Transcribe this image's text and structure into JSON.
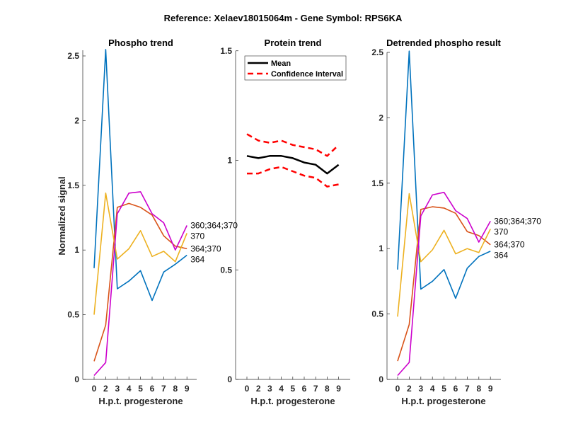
{
  "figure_title": "Reference:  Xelaev18015064m - Gene Symbol:  RPS6KA",
  "colors": {
    "s364": "#0072BD",
    "s364_370": "#D95319",
    "s370": "#EDB120",
    "s360_364_370": "#CC00CC",
    "mean": "#000000",
    "ci": "#FF0000"
  },
  "chart_data": [
    {
      "type": "line",
      "title": "Phospho trend",
      "xlabel": "H.p.t. progesterone",
      "ylabel": "Normalized signal",
      "categories": [
        "0",
        "2",
        "3",
        "4",
        "5",
        "6",
        "7",
        "8",
        "9"
      ],
      "yticks": [
        "0",
        "0.5",
        "1",
        "1.5",
        "2",
        "2.5"
      ],
      "ylim": [
        0,
        2.55
      ],
      "grid": false,
      "series": [
        {
          "name": "364",
          "color": "#0072BD",
          "values": [
            0.86,
            2.55,
            0.7,
            0.76,
            0.84,
            0.61,
            0.83,
            0.89,
            0.96
          ]
        },
        {
          "name": "364;370",
          "color": "#D95319",
          "values": [
            0.14,
            0.42,
            1.33,
            1.36,
            1.33,
            1.27,
            1.11,
            1.03,
            1.01
          ]
        },
        {
          "name": "370",
          "color": "#EDB120",
          "values": [
            0.5,
            1.44,
            0.93,
            1.01,
            1.15,
            0.95,
            0.99,
            0.91,
            1.13
          ]
        },
        {
          "name": "360;364;370",
          "color": "#CC00CC",
          "values": [
            0.03,
            0.13,
            1.28,
            1.44,
            1.45,
            1.28,
            1.21,
            1.0,
            1.19
          ]
        }
      ]
    },
    {
      "type": "line",
      "title": "Protein trend",
      "xlabel": "H.p.t. progesterone",
      "categories": [
        "0",
        "2",
        "3",
        "4",
        "5",
        "6",
        "7",
        "8",
        "9"
      ],
      "yticks": [
        "0",
        "0.5",
        "1",
        "1.5"
      ],
      "ylim": [
        0,
        1.5
      ],
      "grid": false,
      "legend": {
        "placement": "top-left",
        "entries": [
          "Mean",
          "Confidence Interval"
        ]
      },
      "series": [
        {
          "name": "Mean",
          "color": "#000000",
          "style": "solid",
          "values": [
            1.02,
            1.01,
            1.02,
            1.02,
            1.01,
            0.99,
            0.98,
            0.94,
            0.98
          ]
        },
        {
          "name": "Confidence Interval",
          "color": "#FF0000",
          "style": "dashed",
          "values": [
            1.12,
            1.09,
            1.08,
            1.09,
            1.07,
            1.06,
            1.05,
            1.02,
            1.07
          ]
        },
        {
          "name": "Confidence Interval",
          "color": "#FF0000",
          "style": "dashed",
          "values": [
            0.94,
            0.94,
            0.96,
            0.97,
            0.95,
            0.93,
            0.92,
            0.88,
            0.89
          ]
        }
      ]
    },
    {
      "type": "line",
      "title": "Detrended phospho result",
      "xlabel": "H.p.t. progesterone",
      "categories": [
        "0",
        "2",
        "3",
        "4",
        "5",
        "6",
        "7",
        "8",
        "9"
      ],
      "yticks": [
        "0",
        "0.5",
        "1",
        "1.5",
        "2",
        "2.5"
      ],
      "ylim": [
        0,
        2.52
      ],
      "grid": false,
      "series": [
        {
          "name": "364",
          "color": "#0072BD",
          "values": [
            0.84,
            2.51,
            0.69,
            0.75,
            0.84,
            0.62,
            0.85,
            0.94,
            0.98
          ]
        },
        {
          "name": "364;370",
          "color": "#D95319",
          "values": [
            0.14,
            0.42,
            1.3,
            1.32,
            1.31,
            1.27,
            1.13,
            1.1,
            1.03
          ]
        },
        {
          "name": "370",
          "color": "#EDB120",
          "values": [
            0.48,
            1.42,
            0.9,
            0.99,
            1.14,
            0.96,
            1.0,
            0.97,
            1.15
          ]
        },
        {
          "name": "360;364;370",
          "color": "#CC00CC",
          "values": [
            0.03,
            0.13,
            1.25,
            1.41,
            1.43,
            1.29,
            1.23,
            1.05,
            1.21
          ]
        }
      ]
    }
  ]
}
